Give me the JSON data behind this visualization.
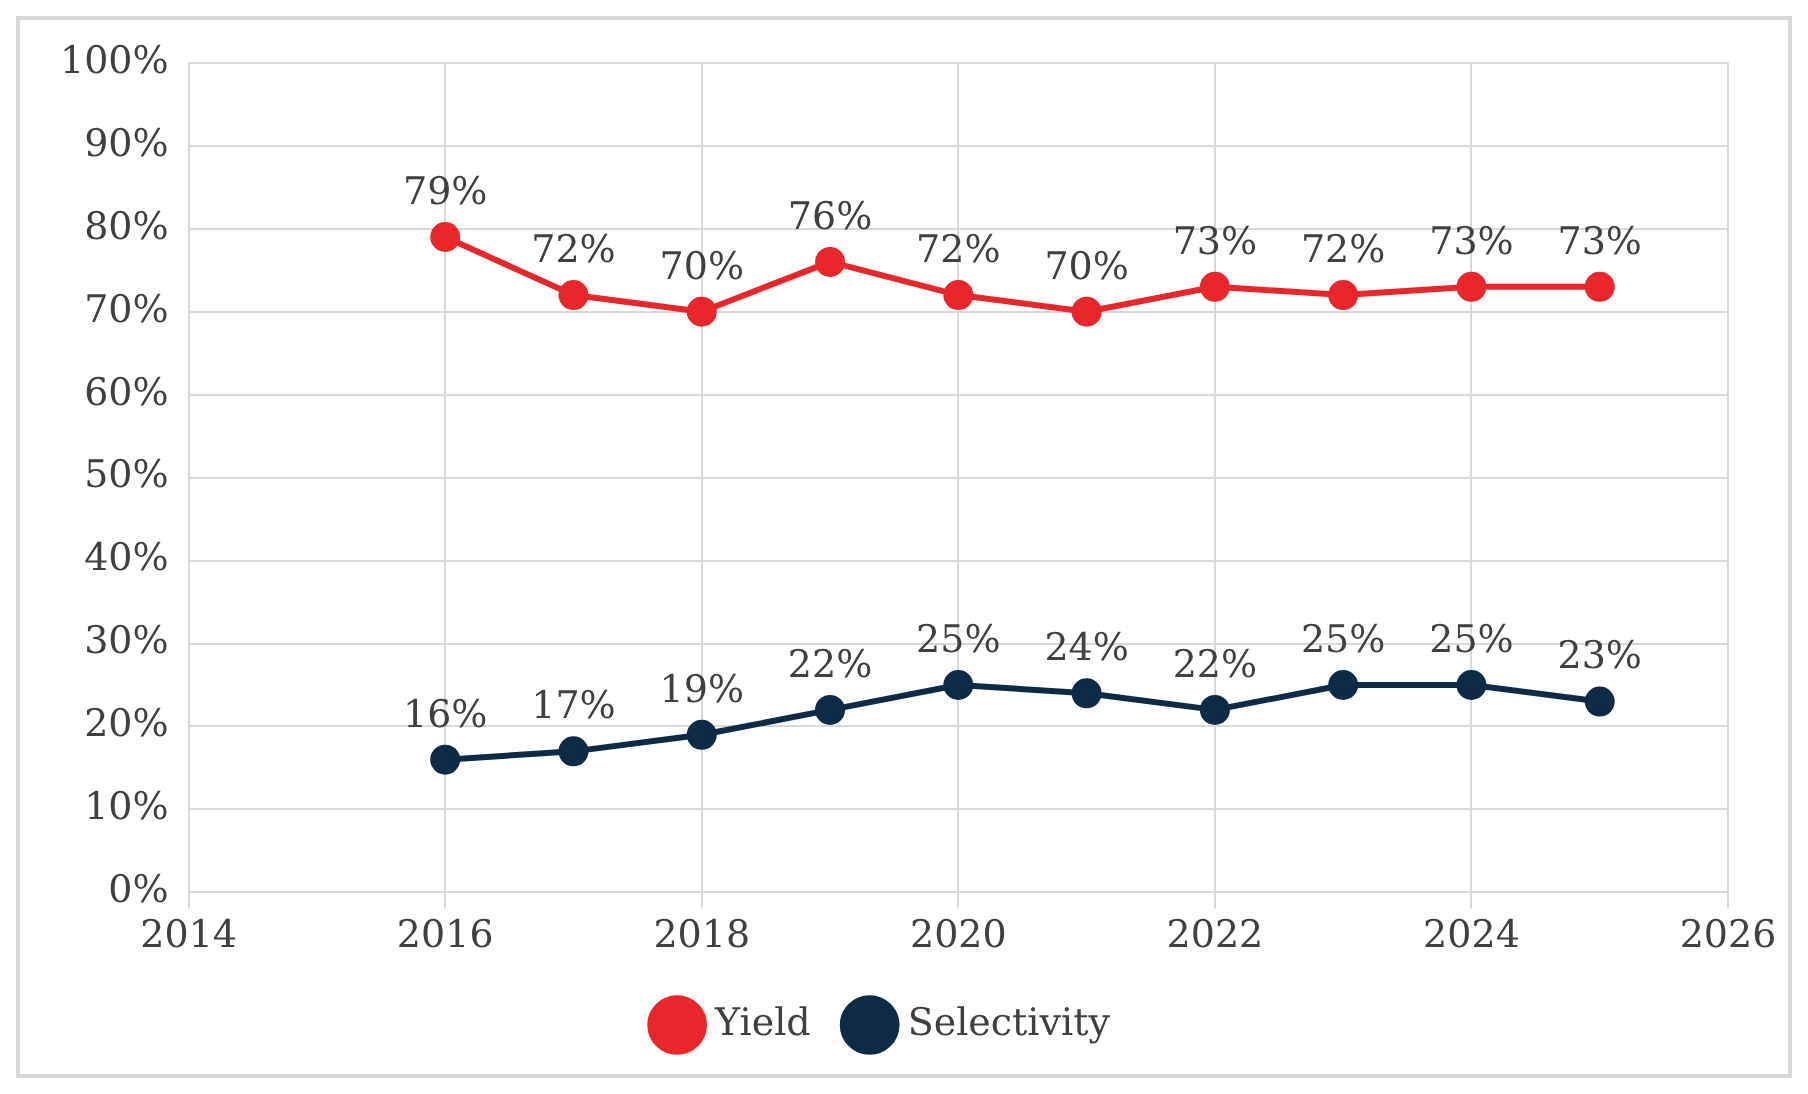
{
  "chart_data": {
    "type": "line",
    "x": [
      2016,
      2017,
      2018,
      2019,
      2020,
      2021,
      2022,
      2023,
      2024,
      2025
    ],
    "series": [
      {
        "name": "Yield",
        "color": "#e8262c",
        "values": [
          79,
          72,
          70,
          76,
          72,
          70,
          73,
          72,
          73,
          73
        ],
        "value_labels": [
          "79%",
          "72%",
          "70%",
          "76%",
          "72%",
          "70%",
          "73%",
          "72%",
          "73%",
          "73%"
        ]
      },
      {
        "name": "Selectivity",
        "color": "#0d2a47",
        "values": [
          16,
          17,
          19,
          22,
          25,
          24,
          22,
          25,
          25,
          23
        ],
        "value_labels": [
          "16%",
          "17%",
          "19%",
          "22%",
          "25%",
          "24%",
          "22%",
          "25%",
          "25%",
          "23%"
        ]
      }
    ],
    "xlim": [
      2014,
      2026
    ],
    "xticks": [
      2014,
      2016,
      2018,
      2020,
      2022,
      2024,
      2026
    ],
    "ylim": [
      0,
      100
    ],
    "yticks": [
      {
        "value": 0,
        "label": "0%"
      },
      {
        "value": 10,
        "label": "10%"
      },
      {
        "value": 20,
        "label": "20%"
      },
      {
        "value": 30,
        "label": "30%"
      },
      {
        "value": 40,
        "label": "40%"
      },
      {
        "value": 50,
        "label": "50%"
      },
      {
        "value": 60,
        "label": "60%"
      },
      {
        "value": 70,
        "label": "70%"
      },
      {
        "value": 80,
        "label": "80%"
      },
      {
        "value": 90,
        "label": "90%"
      },
      {
        "value": 100,
        "label": "100%"
      }
    ],
    "grid": true,
    "legend": "bottom",
    "marker": "circle",
    "line_style": "solid"
  }
}
